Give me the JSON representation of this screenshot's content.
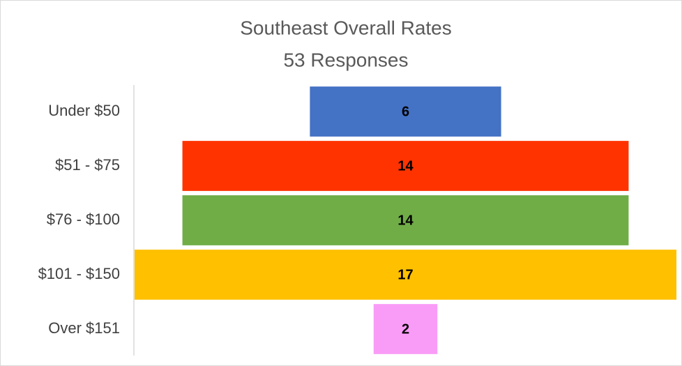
{
  "chart_data": {
    "type": "funnel",
    "title": "Southeast Overall Rates",
    "subtitle": "53 Responses",
    "categories": [
      "Under $50",
      "$51 - $75",
      "$76 - $100",
      "$101 - $150",
      "Over $151"
    ],
    "values": [
      6,
      14,
      14,
      17,
      2
    ],
    "colors": [
      "#4472c4",
      "#ff3300",
      "#70ad47",
      "#ffc000",
      "#f99cf7"
    ]
  }
}
